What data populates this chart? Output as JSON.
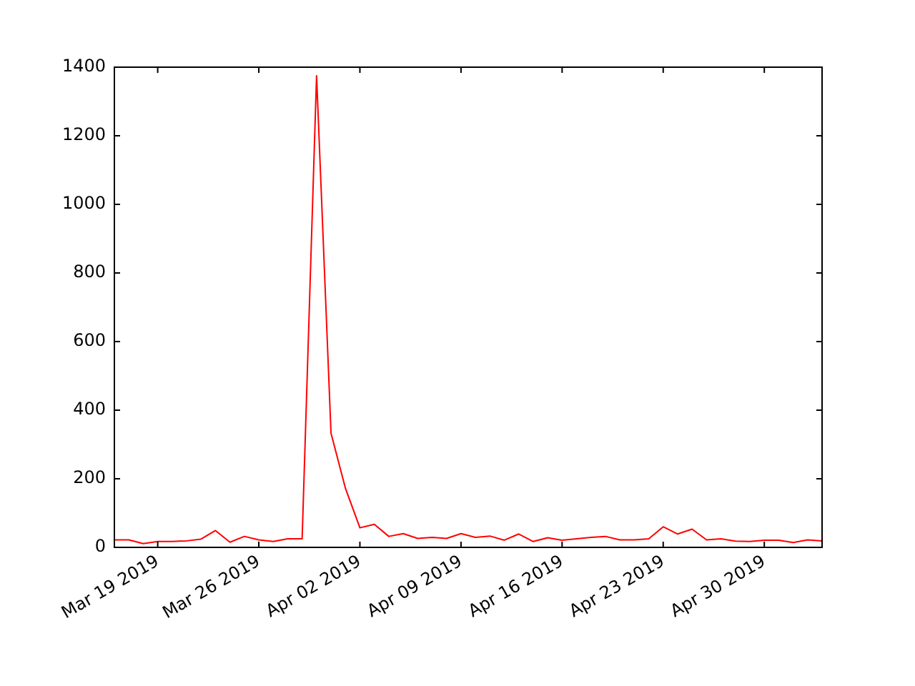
{
  "chart_data": {
    "type": "line",
    "x": [
      "2019-03-16",
      "2019-03-17",
      "2019-03-18",
      "2019-03-19",
      "2019-03-20",
      "2019-03-21",
      "2019-03-22",
      "2019-03-23",
      "2019-03-24",
      "2019-03-25",
      "2019-03-26",
      "2019-03-27",
      "2019-03-28",
      "2019-03-29",
      "2019-03-30",
      "2019-03-31",
      "2019-04-01",
      "2019-04-02",
      "2019-04-03",
      "2019-04-04",
      "2019-04-05",
      "2019-04-06",
      "2019-04-07",
      "2019-04-08",
      "2019-04-09",
      "2019-04-10",
      "2019-04-11",
      "2019-04-12",
      "2019-04-13",
      "2019-04-14",
      "2019-04-15",
      "2019-04-16",
      "2019-04-17",
      "2019-04-18",
      "2019-04-19",
      "2019-04-20",
      "2019-04-21",
      "2019-04-22",
      "2019-04-23",
      "2019-04-24",
      "2019-04-25",
      "2019-04-26",
      "2019-04-27",
      "2019-04-28",
      "2019-04-29",
      "2019-04-30",
      "2019-05-01",
      "2019-05-02",
      "2019-05-03",
      "2019-05-04"
    ],
    "series": [
      {
        "color": "#ff0000",
        "values": [
          22,
          22,
          11,
          17,
          17,
          19,
          24,
          49,
          15,
          32,
          22,
          17,
          25,
          25,
          1375,
          333,
          172,
          57,
          67,
          32,
          40,
          26,
          29,
          26,
          40,
          29,
          33,
          21,
          39,
          17,
          28,
          21,
          25,
          29,
          32,
          22,
          22,
          25,
          60,
          39,
          53,
          22,
          25,
          18,
          17,
          21,
          21,
          14,
          22,
          19
        ]
      }
    ],
    "xlim": [
      "2019-03-16",
      "2019-05-04"
    ],
    "xticks": [
      {
        "value": "2019-03-19",
        "label": "Mar 19 2019"
      },
      {
        "value": "2019-03-26",
        "label": "Mar 26 2019"
      },
      {
        "value": "2019-04-02",
        "label": "Apr 02 2019"
      },
      {
        "value": "2019-04-09",
        "label": "Apr 09 2019"
      },
      {
        "value": "2019-04-16",
        "label": "Apr 16 2019"
      },
      {
        "value": "2019-04-23",
        "label": "Apr 23 2019"
      },
      {
        "value": "2019-04-30",
        "label": "Apr 30 2019"
      }
    ],
    "ylim": [
      0,
      1400
    ],
    "yticks": [
      0,
      200,
      400,
      600,
      800,
      1000,
      1200,
      1400
    ],
    "grid": false,
    "legend": false,
    "marker": "none",
    "line_style": "solid"
  }
}
